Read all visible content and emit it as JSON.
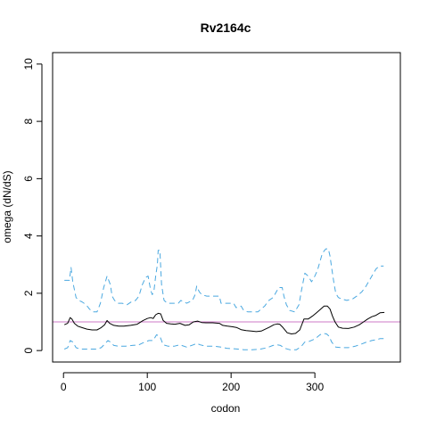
{
  "chart_data": {
    "type": "line",
    "title": "Rv2164c",
    "xlabel": "codon",
    "ylabel": "omega (dN/dS)",
    "xlim": [
      -13,
      402
    ],
    "ylim": [
      -0.4,
      10.4
    ],
    "x_ticks": [
      0,
      100,
      200,
      300
    ],
    "y_ticks": [
      0,
      2,
      4,
      6,
      8,
      10
    ],
    "grid": false,
    "reference_line": {
      "y": 1,
      "color": "#cc79c7"
    },
    "series": [
      {
        "role": "upper",
        "color": "#4aa8e0",
        "dash": "dashed",
        "points": [
          [
            1,
            2.45
          ],
          [
            7,
            2.45
          ],
          [
            9,
            2.9
          ],
          [
            11,
            2.4
          ],
          [
            15,
            1.85
          ],
          [
            18,
            1.75
          ],
          [
            22,
            1.7
          ],
          [
            27,
            1.6
          ],
          [
            31,
            1.45
          ],
          [
            35,
            1.35
          ],
          [
            40,
            1.35
          ],
          [
            44,
            1.65
          ],
          [
            48,
            2.2
          ],
          [
            52,
            2.6
          ],
          [
            56,
            2.3
          ],
          [
            58,
            1.9
          ],
          [
            61,
            1.75
          ],
          [
            65,
            1.65
          ],
          [
            70,
            1.65
          ],
          [
            76,
            1.6
          ],
          [
            81,
            1.7
          ],
          [
            86,
            1.75
          ],
          [
            90,
            1.9
          ],
          [
            94,
            2.3
          ],
          [
            98,
            2.55
          ],
          [
            101,
            2.6
          ],
          [
            104,
            2.1
          ],
          [
            106,
            1.95
          ],
          [
            108,
            2.1
          ],
          [
            110,
            2.6
          ],
          [
            112,
            3.0
          ],
          [
            113,
            3.5
          ],
          [
            115,
            3.5
          ],
          [
            117,
            2.3
          ],
          [
            120,
            1.75
          ],
          [
            124,
            1.65
          ],
          [
            130,
            1.65
          ],
          [
            137,
            1.65
          ],
          [
            140,
            1.75
          ],
          [
            147,
            1.65
          ],
          [
            154,
            1.75
          ],
          [
            157,
            1.95
          ],
          [
            159,
            2.25
          ],
          [
            162,
            2.05
          ],
          [
            165,
            1.95
          ],
          [
            171,
            1.9
          ],
          [
            178,
            1.9
          ],
          [
            186,
            1.9
          ],
          [
            188,
            1.65
          ],
          [
            194,
            1.65
          ],
          [
            203,
            1.65
          ],
          [
            206,
            1.5
          ],
          [
            212,
            1.55
          ],
          [
            215,
            1.4
          ],
          [
            220,
            1.35
          ],
          [
            226,
            1.35
          ],
          [
            232,
            1.35
          ],
          [
            236,
            1.45
          ],
          [
            240,
            1.55
          ],
          [
            245,
            1.75
          ],
          [
            250,
            1.85
          ],
          [
            254,
            2.05
          ],
          [
            257,
            2.2
          ],
          [
            261,
            2.2
          ],
          [
            263,
            1.9
          ],
          [
            266,
            1.6
          ],
          [
            270,
            1.4
          ],
          [
            276,
            1.35
          ],
          [
            281,
            1.6
          ],
          [
            284,
            2.1
          ],
          [
            288,
            2.7
          ],
          [
            292,
            2.6
          ],
          [
            296,
            2.4
          ],
          [
            300,
            2.6
          ],
          [
            303,
            2.8
          ],
          [
            306,
            3.1
          ],
          [
            309,
            3.4
          ],
          [
            313,
            3.55
          ],
          [
            316,
            3.55
          ],
          [
            318,
            3.3
          ],
          [
            320,
            2.9
          ],
          [
            323,
            2.3
          ],
          [
            325,
            2.0
          ],
          [
            328,
            1.85
          ],
          [
            332,
            1.8
          ],
          [
            338,
            1.75
          ],
          [
            345,
            1.8
          ],
          [
            350,
            1.9
          ],
          [
            356,
            2.05
          ],
          [
            361,
            2.25
          ],
          [
            366,
            2.5
          ],
          [
            370,
            2.7
          ],
          [
            373,
            2.85
          ],
          [
            377,
            2.95
          ],
          [
            382,
            2.95
          ]
        ]
      },
      {
        "role": "estimate",
        "color": "#000000",
        "dash": "solid",
        "points": [
          [
            1,
            0.9
          ],
          [
            5,
            0.95
          ],
          [
            8,
            1.15
          ],
          [
            10,
            1.1
          ],
          [
            13,
            0.95
          ],
          [
            17,
            0.85
          ],
          [
            22,
            0.8
          ],
          [
            28,
            0.75
          ],
          [
            34,
            0.72
          ],
          [
            40,
            0.72
          ],
          [
            45,
            0.8
          ],
          [
            49,
            0.9
          ],
          [
            52,
            1.05
          ],
          [
            55,
            0.95
          ],
          [
            60,
            0.88
          ],
          [
            66,
            0.85
          ],
          [
            72,
            0.85
          ],
          [
            80,
            0.88
          ],
          [
            88,
            0.92
          ],
          [
            95,
            1.05
          ],
          [
            100,
            1.12
          ],
          [
            104,
            1.15
          ],
          [
            107,
            1.12
          ],
          [
            110,
            1.25
          ],
          [
            113,
            1.3
          ],
          [
            116,
            1.28
          ],
          [
            119,
            1.05
          ],
          [
            123,
            0.95
          ],
          [
            128,
            0.93
          ],
          [
            133,
            0.92
          ],
          [
            139,
            0.95
          ],
          [
            145,
            0.88
          ],
          [
            150,
            0.9
          ],
          [
            155,
            1.0
          ],
          [
            160,
            1.03
          ],
          [
            165,
            0.98
          ],
          [
            170,
            0.97
          ],
          [
            178,
            0.97
          ],
          [
            186,
            0.95
          ],
          [
            190,
            0.88
          ],
          [
            196,
            0.85
          ],
          [
            202,
            0.83
          ],
          [
            207,
            0.8
          ],
          [
            212,
            0.73
          ],
          [
            218,
            0.7
          ],
          [
            224,
            0.68
          ],
          [
            230,
            0.66
          ],
          [
            236,
            0.68
          ],
          [
            241,
            0.75
          ],
          [
            246,
            0.82
          ],
          [
            251,
            0.9
          ],
          [
            255,
            0.93
          ],
          [
            258,
            0.92
          ],
          [
            262,
            0.8
          ],
          [
            267,
            0.62
          ],
          [
            272,
            0.58
          ],
          [
            277,
            0.6
          ],
          [
            282,
            0.72
          ],
          [
            287,
            1.1
          ],
          [
            292,
            1.1
          ],
          [
            297,
            1.2
          ],
          [
            302,
            1.32
          ],
          [
            307,
            1.45
          ],
          [
            311,
            1.55
          ],
          [
            315,
            1.55
          ],
          [
            318,
            1.45
          ],
          [
            321,
            1.2
          ],
          [
            324,
            1.0
          ],
          [
            328,
            0.82
          ],
          [
            333,
            0.78
          ],
          [
            340,
            0.77
          ],
          [
            347,
            0.82
          ],
          [
            353,
            0.9
          ],
          [
            358,
            1.0
          ],
          [
            363,
            1.1
          ],
          [
            368,
            1.18
          ],
          [
            373,
            1.23
          ],
          [
            378,
            1.32
          ],
          [
            383,
            1.33
          ]
        ]
      },
      {
        "role": "lower",
        "color": "#4aa8e0",
        "dash": "dashed",
        "points": [
          [
            1,
            0.05
          ],
          [
            5,
            0.1
          ],
          [
            8,
            0.35
          ],
          [
            11,
            0.3
          ],
          [
            15,
            0.1
          ],
          [
            20,
            0.05
          ],
          [
            30,
            0.05
          ],
          [
            40,
            0.05
          ],
          [
            45,
            0.1
          ],
          [
            50,
            0.25
          ],
          [
            53,
            0.35
          ],
          [
            56,
            0.3
          ],
          [
            60,
            0.18
          ],
          [
            66,
            0.15
          ],
          [
            74,
            0.15
          ],
          [
            82,
            0.18
          ],
          [
            90,
            0.2
          ],
          [
            97,
            0.3
          ],
          [
            102,
            0.35
          ],
          [
            107,
            0.35
          ],
          [
            111,
            0.55
          ],
          [
            115,
            0.5
          ],
          [
            119,
            0.2
          ],
          [
            125,
            0.15
          ],
          [
            132,
            0.15
          ],
          [
            139,
            0.2
          ],
          [
            147,
            0.12
          ],
          [
            155,
            0.2
          ],
          [
            159,
            0.25
          ],
          [
            163,
            0.2
          ],
          [
            170,
            0.15
          ],
          [
            180,
            0.15
          ],
          [
            188,
            0.12
          ],
          [
            195,
            0.08
          ],
          [
            205,
            0.06
          ],
          [
            215,
            0.03
          ],
          [
            225,
            0.03
          ],
          [
            235,
            0.05
          ],
          [
            243,
            0.1
          ],
          [
            250,
            0.18
          ],
          [
            255,
            0.2
          ],
          [
            259,
            0.18
          ],
          [
            264,
            0.08
          ],
          [
            270,
            0.03
          ],
          [
            278,
            0.03
          ],
          [
            284,
            0.15
          ],
          [
            288,
            0.3
          ],
          [
            293,
            0.32
          ],
          [
            298,
            0.38
          ],
          [
            302,
            0.45
          ],
          [
            306,
            0.55
          ],
          [
            310,
            0.6
          ],
          [
            314,
            0.58
          ],
          [
            317,
            0.5
          ],
          [
            320,
            0.3
          ],
          [
            325,
            0.12
          ],
          [
            332,
            0.1
          ],
          [
            340,
            0.1
          ],
          [
            348,
            0.15
          ],
          [
            355,
            0.22
          ],
          [
            362,
            0.3
          ],
          [
            368,
            0.35
          ],
          [
            374,
            0.38
          ],
          [
            378,
            0.42
          ],
          [
            382,
            0.42
          ]
        ]
      }
    ]
  }
}
